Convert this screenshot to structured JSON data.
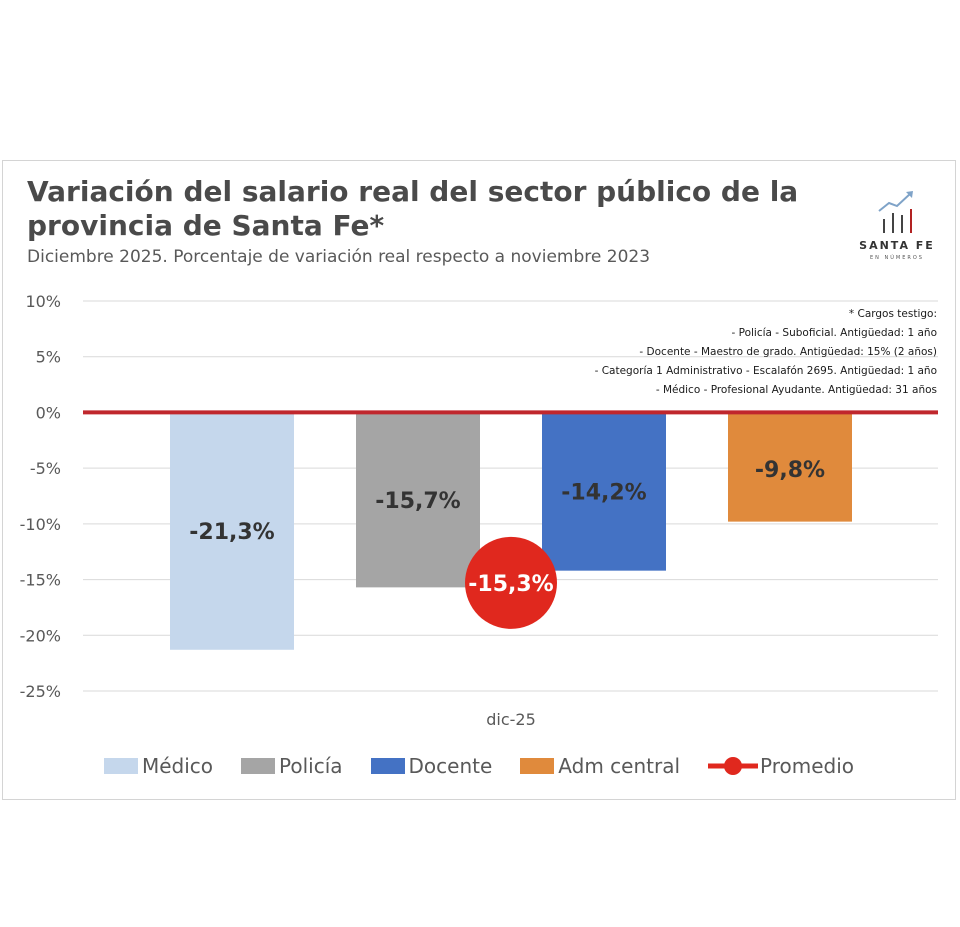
{
  "header": {
    "title": "Variación del salario real del sector público de la provincia de Santa Fe*",
    "subtitle": "Diciembre 2025. Porcentaje de variación real respecto a noviembre 2023"
  },
  "brand": {
    "name": "SANTA FE",
    "tagline": "EN NÚMEROS",
    "color_accent": "#b22222"
  },
  "notes": [
    "* Cargos testigo:",
    "- Policía - Suboficial. Antigüedad: 1 año",
    "- Docente - Maestro de grado. Antigüedad: 15% (2 años)",
    "- Categoría 1 Administrativo - Escalafón 2695. Antigüedad: 1 año",
    "- Médico - Profesional Ayudante. Antigüedad: 31 años"
  ],
  "chart_data": {
    "type": "bar",
    "title": "Variación del salario real del sector público de la provincia de Santa Fe*",
    "subtitle": "Diciembre 2025. Porcentaje de variación real respecto a noviembre 2023",
    "categories": [
      "dic-25"
    ],
    "ylim": [
      -25,
      10
    ],
    "yticks": [
      10,
      5,
      0,
      -5,
      -10,
      -15,
      -20,
      -25
    ],
    "ytick_labels": [
      "10%",
      "5%",
      "0%",
      "-5%",
      "-10%",
      "-15%",
      "-20%",
      "-25%"
    ],
    "grid": true,
    "legend_position": "bottom",
    "series": [
      {
        "name": "Médico",
        "values": [
          -21.3
        ],
        "label": "-21,3%",
        "color": "#c5d7ec",
        "label_color": "#333333"
      },
      {
        "name": "Policía",
        "values": [
          -15.7
        ],
        "label": "-15,7%",
        "color": "#a5a5a5",
        "label_color": "#333333"
      },
      {
        "name": "Docente",
        "values": [
          -14.2
        ],
        "label": "-14,2%",
        "color": "#4472c4",
        "label_color": "#333333"
      },
      {
        "name": "Adm central",
        "values": [
          -9.8
        ],
        "label": "-9,8%",
        "color": "#e08a3c",
        "label_color": "#333333"
      }
    ],
    "average": {
      "name": "Promedio",
      "value": -15.3,
      "label": "-15,3%",
      "color": "#e0281e",
      "label_color": "#ffffff"
    },
    "zero_line_color": "#c0272d"
  }
}
